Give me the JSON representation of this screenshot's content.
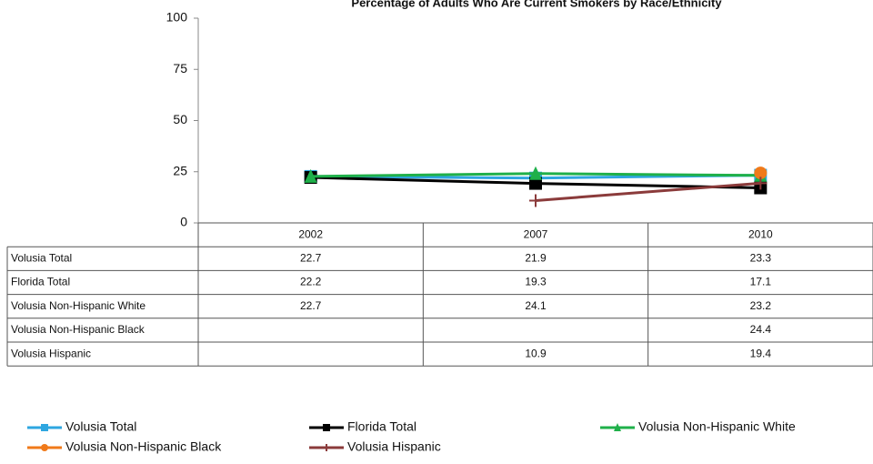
{
  "chart_data": {
    "type": "line",
    "title": "Percentage of Adults Who Are Current Smokers by Race/Ethnicity",
    "categories": [
      "2002",
      "2007",
      "2010"
    ],
    "series": [
      {
        "name": "Volusia Total",
        "color": "#2ea6e0",
        "marker": "square",
        "values": [
          22.7,
          21.9,
          23.3
        ]
      },
      {
        "name": "Florida Total",
        "color": "#000000",
        "marker": "square",
        "values": [
          22.2,
          19.3,
          17.1
        ]
      },
      {
        "name": "Volusia Non-Hispanic White",
        "color": "#1fb04a",
        "marker": "triangle",
        "values": [
          22.7,
          24.1,
          23.2
        ]
      },
      {
        "name": "Volusia Non-Hispanic Black",
        "color": "#f07a1a",
        "marker": "circle",
        "values": [
          null,
          null,
          24.4
        ]
      },
      {
        "name": "Volusia Hispanic",
        "color": "#8b3b3b",
        "marker": "plus",
        "values": [
          null,
          10.9,
          19.4
        ]
      }
    ],
    "ylim": [
      0,
      100
    ],
    "yticks": [
      0,
      25,
      50,
      75,
      100
    ],
    "grid": false,
    "data_table": true,
    "legend": "bottom"
  }
}
